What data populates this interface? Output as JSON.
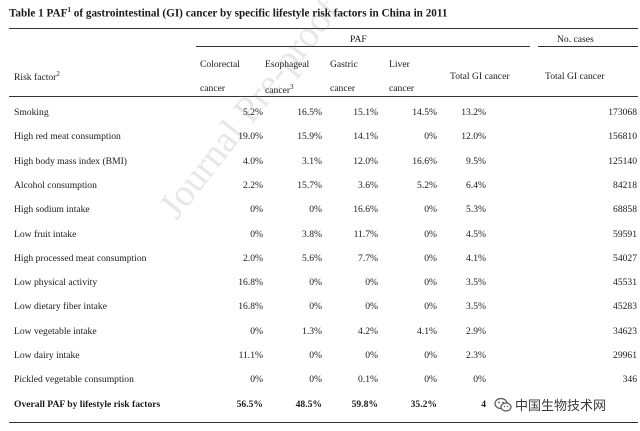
{
  "title": {
    "pre": "Table 1 PAF",
    "sup": "1",
    "post": " of gastrointestinal (GI) cancer by specific lifestyle risk factors in China in 2011"
  },
  "header": {
    "paf_group": "PAF",
    "cases_group": "No. cases",
    "risk_factor": "Risk factor",
    "risk_factor_sup": "2",
    "colorectal_1": "Colorectal",
    "colorectal_2": "cancer",
    "esophageal_1": "Esophageal",
    "esophageal_2": "cancer",
    "esophageal_sup": "3",
    "gastric_1": "Gastric",
    "gastric_2": "cancer",
    "liver_1": "Liver",
    "liver_2": "cancer",
    "total_gi": "Total GI cancer",
    "total_gi_cases": "Total GI cancer"
  },
  "rows": [
    {
      "factor": "Smoking",
      "colorectal": "5.2%",
      "esophageal": "16.5%",
      "gastric": "15.1%",
      "liver": "14.5%",
      "total": "13.2%",
      "cases": "173068"
    },
    {
      "factor": "High red meat consumption",
      "colorectal": "19.0%",
      "esophageal": "15.9%",
      "gastric": "14.1%",
      "liver": "0%",
      "total": "12.0%",
      "cases": "156810"
    },
    {
      "factor": "High body mass index (BMI)",
      "colorectal": "4.0%",
      "esophageal": "3.1%",
      "gastric": "12.0%",
      "liver": "16.6%",
      "total": "9.5%",
      "cases": "125140"
    },
    {
      "factor": "Alcohol consumption",
      "colorectal": "2.2%",
      "esophageal": "15.7%",
      "gastric": "3.6%",
      "liver": "5.2%",
      "total": "6.4%",
      "cases": "84218"
    },
    {
      "factor": "High sodium intake",
      "colorectal": "0%",
      "esophageal": "0%",
      "gastric": "16.6%",
      "liver": "0%",
      "total": "5.3%",
      "cases": "68858"
    },
    {
      "factor": "Low fruit intake",
      "colorectal": "0%",
      "esophageal": "3.8%",
      "gastric": "11.7%",
      "liver": "0%",
      "total": "4.5%",
      "cases": "59591"
    },
    {
      "factor": "High processed meat consumption",
      "colorectal": "2.0%",
      "esophageal": "5.6%",
      "gastric": "7.7%",
      "liver": "0%",
      "total": "4.1%",
      "cases": "54027"
    },
    {
      "factor": "Low physical activity",
      "colorectal": "16.8%",
      "esophageal": "0%",
      "gastric": "0%",
      "liver": "0%",
      "total": "3.5%",
      "cases": "45531"
    },
    {
      "factor": "Low dietary fiber intake",
      "colorectal": "16.8%",
      "esophageal": "0%",
      "gastric": "0%",
      "liver": "0%",
      "total": "3.5%",
      "cases": "45283"
    },
    {
      "factor": "Low vegetable intake",
      "colorectal": "0%",
      "esophageal": "1.3%",
      "gastric": "4.2%",
      "liver": "4.1%",
      "total": "2.9%",
      "cases": "34623"
    },
    {
      "factor": "Low dairy intake",
      "colorectal": "11.1%",
      "esophageal": "0%",
      "gastric": "0%",
      "liver": "0%",
      "total": "2.3%",
      "cases": "29961"
    },
    {
      "factor": "Pickled vegetable consumption",
      "colorectal": "0%",
      "esophageal": "0%",
      "gastric": "0.1%",
      "liver": "0%",
      "total": "0%",
      "cases": "346"
    },
    {
      "factor": "Overall PAF by lifestyle risk factors",
      "colorectal": "56.5%",
      "esophageal": "48.5%",
      "gastric": "59.8%",
      "liver": "35.2%",
      "total": "4",
      "cases": ""
    }
  ],
  "watermark": "Journal Pre-proof",
  "brand": "中国生物技术网",
  "brand_icon": "wechat-icon"
}
